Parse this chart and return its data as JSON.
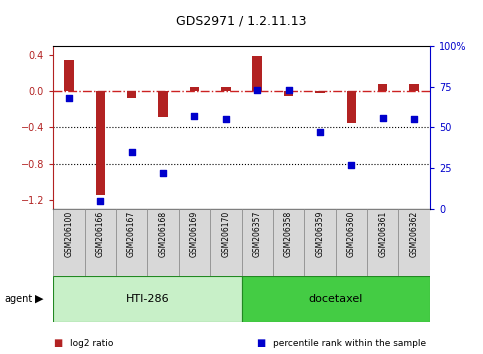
{
  "title": "GDS2971 / 1.2.11.13",
  "samples": [
    "GSM206100",
    "GSM206166",
    "GSM206167",
    "GSM206168",
    "GSM206169",
    "GSM206170",
    "GSM206357",
    "GSM206358",
    "GSM206359",
    "GSM206360",
    "GSM206361",
    "GSM206362"
  ],
  "log2_ratio": [
    0.35,
    -1.15,
    -0.08,
    -0.28,
    0.05,
    0.05,
    0.39,
    -0.05,
    -0.02,
    -0.35,
    0.08,
    0.08
  ],
  "percentile": [
    68,
    5,
    35,
    22,
    57,
    55,
    73,
    73,
    47,
    27,
    56,
    55
  ],
  "bar_color": "#b22222",
  "dot_color": "#0000cc",
  "dashed_line_color": "#cc2222",
  "dotted_line_color": "#000000",
  "ylim_left": [
    -1.3,
    0.5
  ],
  "ylim_right": [
    0,
    100
  ],
  "yticks_left": [
    -1.2,
    -0.8,
    -0.4,
    0.0,
    0.4
  ],
  "yticks_right": [
    0,
    25,
    50,
    75,
    100
  ],
  "groups": [
    {
      "label": "HTI-286",
      "start": 0,
      "end": 5,
      "color": "#c8f0c8"
    },
    {
      "label": "docetaxel",
      "start": 6,
      "end": 11,
      "color": "#44cc44"
    }
  ],
  "group_row_label": "agent",
  "legend": [
    {
      "color": "#b22222",
      "label": "log2 ratio"
    },
    {
      "color": "#0000cc",
      "label": "percentile rank within the sample"
    }
  ],
  "background_color": "#ffffff",
  "plot_bg_color": "#ffffff",
  "label_bg_color": "#d8d8d8",
  "bar_width": 0.3
}
